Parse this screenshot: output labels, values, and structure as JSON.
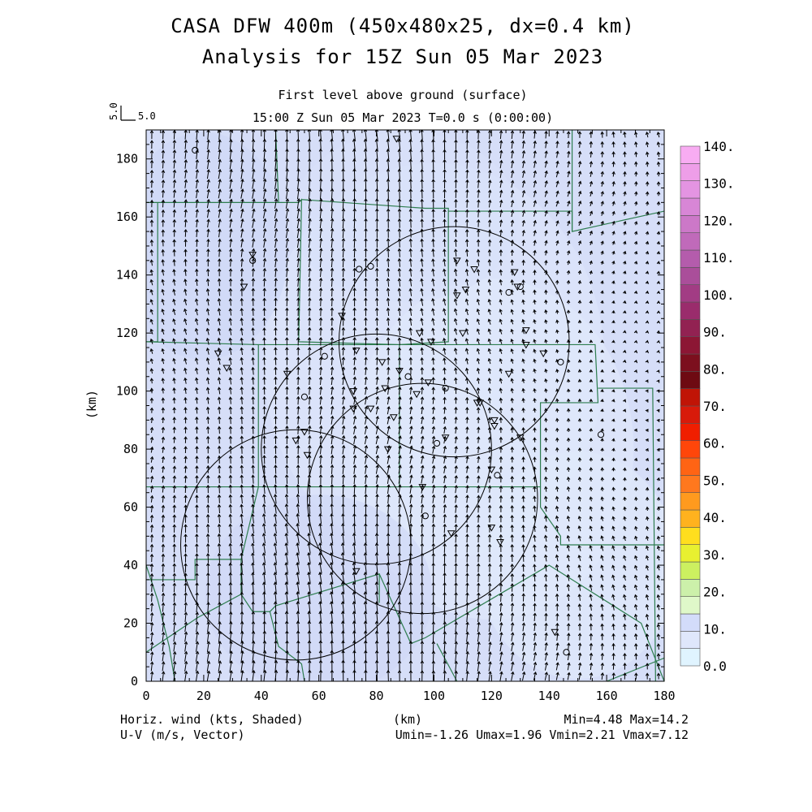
{
  "header": {
    "title_line1": "CASA DFW 400m (450x480x25, dx=0.4 km)",
    "title_line2": "Analysis for 15Z Sun 05 Mar 2023",
    "level": "First level above ground (surface)",
    "time": "15:00 Z Sun 05 Mar 2023    T=0.0 s (0:00:00)",
    "ref_vector_scale": "5.0",
    "ref_vector_label": "5.0"
  },
  "footer": {
    "left_line1": "Horiz. wind (kts, Shaded)",
    "left_line2": "U-V (m/s, Vector)",
    "center": "(km)",
    "right_line1": "Min=4.48 Max=14.2",
    "right_line2": "Umin=-1.26 Umax=1.96 Vmin=2.21 Vmax=7.12"
  },
  "colors": {
    "map_lines": "#2e7d4f",
    "radar_rings": "#000000",
    "vector": "#000000"
  },
  "chart_data": {
    "type": "heatmap",
    "title": "CASA DFW 400m (450x480x25, dx=0.4 km)",
    "xlabel": "",
    "ylabel": "(km)",
    "xlim": [
      0,
      180
    ],
    "ylim": [
      0,
      190
    ],
    "xticks": [
      0,
      20,
      40,
      60,
      80,
      100,
      120,
      140,
      160,
      180
    ],
    "yticks": [
      0,
      20,
      40,
      60,
      80,
      100,
      120,
      140,
      160,
      180
    ],
    "shaded_field": "Horiz. wind (kts)",
    "field_min": 4.48,
    "field_max": 14.2,
    "colorbar": {
      "ticks": [
        "0.0",
        "10.",
        "20.",
        "30.",
        "40.",
        "50.",
        "60.",
        "70.",
        "80.",
        "90.",
        "100.",
        "110.",
        "120.",
        "130.",
        "140."
      ],
      "colors": [
        "#e0f4ff",
        "#dfe7fb",
        "#d3dcfa",
        "#dff8c9",
        "#ccf0aa",
        "#ccf060",
        "#e8f030",
        "#ffde1e",
        "#ffb21e",
        "#ff9a1e",
        "#ff781e",
        "#ff6414",
        "#ff460a",
        "#f01e00",
        "#d81a0a",
        "#c01406",
        "#6e0a12",
        "#7c0f1e",
        "#8c1634",
        "#922252",
        "#9a2c6c",
        "#a23c84",
        "#aa4e9a",
        "#b45cac",
        "#c06aba",
        "#cc78c8",
        "#d886d6",
        "#e494e2",
        "#ee9ee8",
        "#f8acf2"
      ]
    },
    "vectors": {
      "quantity": "U-V (m/s)",
      "u_range": [
        -1.26,
        1.96
      ],
      "v_range": [
        2.21,
        7.12
      ],
      "reference_magnitude": 5.0
    },
    "radar_range_rings": [
      {
        "center": [
          107,
          117
        ],
        "radius_km": 40
      },
      {
        "center": [
          80,
          80
        ],
        "radius_km": 40
      },
      {
        "center": [
          96,
          63
        ],
        "radius_km": 40
      },
      {
        "center": [
          52,
          47
        ],
        "radius_km": 40
      }
    ]
  }
}
